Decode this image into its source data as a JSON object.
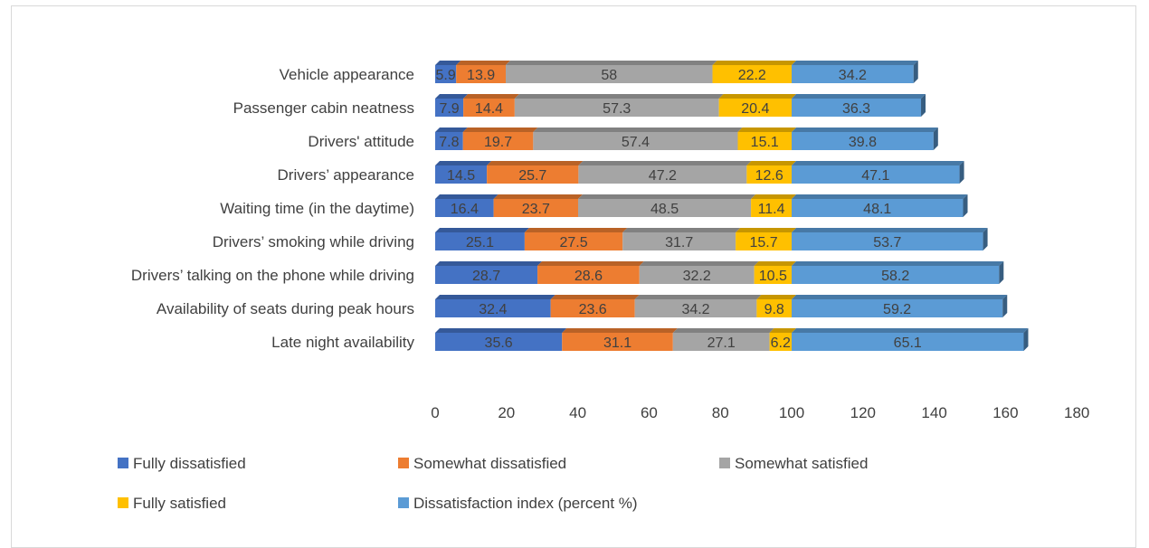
{
  "chart_data": {
    "type": "bar",
    "orientation": "horizontal",
    "stacked": true,
    "style": "3d",
    "categories": [
      "Vehicle appearance",
      "Passenger cabin neatness",
      "Drivers' attitude",
      "Drivers’ appearance",
      "Waiting time (in the daytime)",
      "Drivers’ smoking while driving",
      "Drivers’ talking on the phone while driving",
      "Availability of seats during peak hours",
      "Late night availability"
    ],
    "series": [
      {
        "name": "Fully dissatisfied",
        "color": "#4472c4",
        "values": [
          5.9,
          7.9,
          7.8,
          14.5,
          16.4,
          25.1,
          28.7,
          32.4,
          35.6
        ]
      },
      {
        "name": "Somewhat dissatisfied",
        "color": "#ed7d31",
        "values": [
          13.9,
          14.4,
          19.7,
          25.7,
          23.7,
          27.5,
          28.6,
          23.6,
          31.1
        ]
      },
      {
        "name": "Somewhat satisfied",
        "color": "#a5a5a5",
        "values": [
          58,
          57.3,
          57.4,
          47.2,
          48.5,
          31.7,
          32.2,
          34.2,
          27.1
        ]
      },
      {
        "name": "Fully satisfied",
        "color": "#ffc000",
        "values": [
          22.2,
          20.4,
          15.1,
          12.6,
          11.4,
          15.7,
          10.5,
          9.8,
          6.2
        ]
      },
      {
        "name": "Dissatisfaction index (percent %)",
        "color": "#5b9bd5",
        "values": [
          34.2,
          36.3,
          39.8,
          47.1,
          48.1,
          53.7,
          58.2,
          59.2,
          65.1
        ]
      }
    ],
    "xlim": [
      0,
      180
    ],
    "xticks": [
      "0",
      "20",
      "40",
      "60",
      "80",
      "100",
      "120",
      "140",
      "160",
      "180"
    ],
    "grid": false,
    "legend_position": "bottom",
    "data_labels": true
  }
}
